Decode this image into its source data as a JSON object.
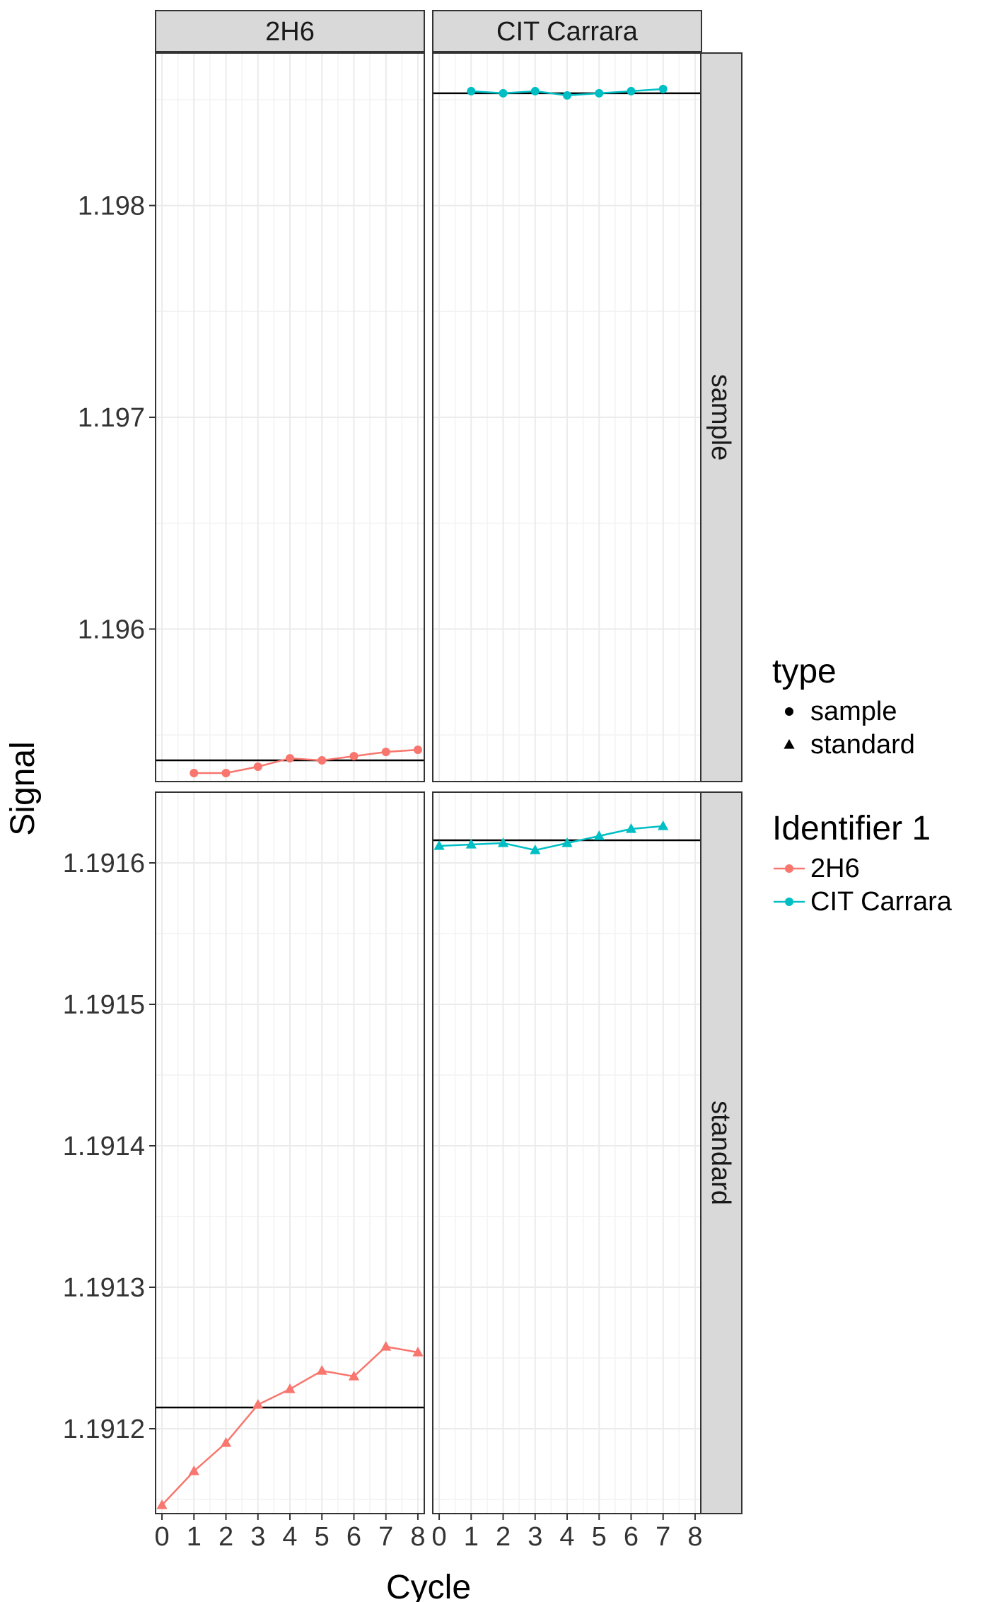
{
  "chart_data": {
    "type": "line",
    "xlabel": "Cycle",
    "ylabel": "Signal",
    "x_ticks": [
      0,
      1,
      2,
      3,
      4,
      5,
      6,
      7,
      8
    ],
    "xlim": [
      -0.2,
      8.2
    ],
    "columns": [
      "2H6",
      "CIT Carrara"
    ],
    "rows": [
      "sample",
      "standard"
    ],
    "grid": true,
    "rows_scales": {
      "sample": {
        "ylim": [
          1.19528,
          1.19872
        ],
        "y_ticks": [
          1.196,
          1.197,
          1.198
        ],
        "y_tick_labels": [
          "1.196",
          "1.197",
          "1.198"
        ]
      },
      "standard": {
        "ylim": [
          1.19114,
          1.19165
        ],
        "y_ticks": [
          1.1912,
          1.1913,
          1.1914,
          1.1915,
          1.1916
        ],
        "y_tick_labels": [
          "1.1912",
          "1.1913",
          "1.1914",
          "1.1915",
          "1.1916"
        ]
      }
    },
    "panels": [
      {
        "column": "2H6",
        "row": "sample",
        "color": "#F8766D",
        "shape": "circle",
        "reference": 1.19538,
        "x": [
          1,
          2,
          3,
          4,
          5,
          6,
          7,
          8
        ],
        "y": [
          1.19532,
          1.19532,
          1.19535,
          1.19539,
          1.19538,
          1.1954,
          1.19542,
          1.19543
        ]
      },
      {
        "column": "CIT Carrara",
        "row": "sample",
        "color": "#00BFC4",
        "shape": "circle",
        "reference": 1.19853,
        "x": [
          1,
          2,
          3,
          4,
          5,
          6,
          7
        ],
        "y": [
          1.19854,
          1.19853,
          1.19854,
          1.19852,
          1.19853,
          1.19854,
          1.19855
        ]
      },
      {
        "column": "2H6",
        "row": "standard",
        "color": "#F8766D",
        "shape": "triangle",
        "reference": 1.191215,
        "x": [
          0,
          1,
          2,
          3,
          4,
          5,
          6,
          7,
          8
        ],
        "y": [
          1.191146,
          1.19117,
          1.19119,
          1.191217,
          1.191228,
          1.191241,
          1.191237,
          1.191258,
          1.191254
        ]
      },
      {
        "column": "CIT Carrara",
        "row": "standard",
        "color": "#00BFC4",
        "shape": "triangle",
        "reference": 1.191616,
        "x": [
          0,
          1,
          2,
          3,
          4,
          5,
          6,
          7
        ],
        "y": [
          1.191612,
          1.191613,
          1.191614,
          1.191609,
          1.191614,
          1.191619,
          1.191624,
          1.191626
        ]
      }
    ],
    "legends": [
      {
        "title": "type",
        "entries": [
          {
            "label": "sample",
            "shape": "circle",
            "color": "#000000"
          },
          {
            "label": "standard",
            "shape": "triangle",
            "color": "#000000"
          }
        ]
      },
      {
        "title": "Identifier 1",
        "entries": [
          {
            "label": "2H6",
            "shape": "line-circle",
            "color": "#F8766D"
          },
          {
            "label": "CIT Carrara",
            "shape": "line-circle",
            "color": "#00BFC4"
          }
        ]
      }
    ],
    "legend_position": "right"
  }
}
